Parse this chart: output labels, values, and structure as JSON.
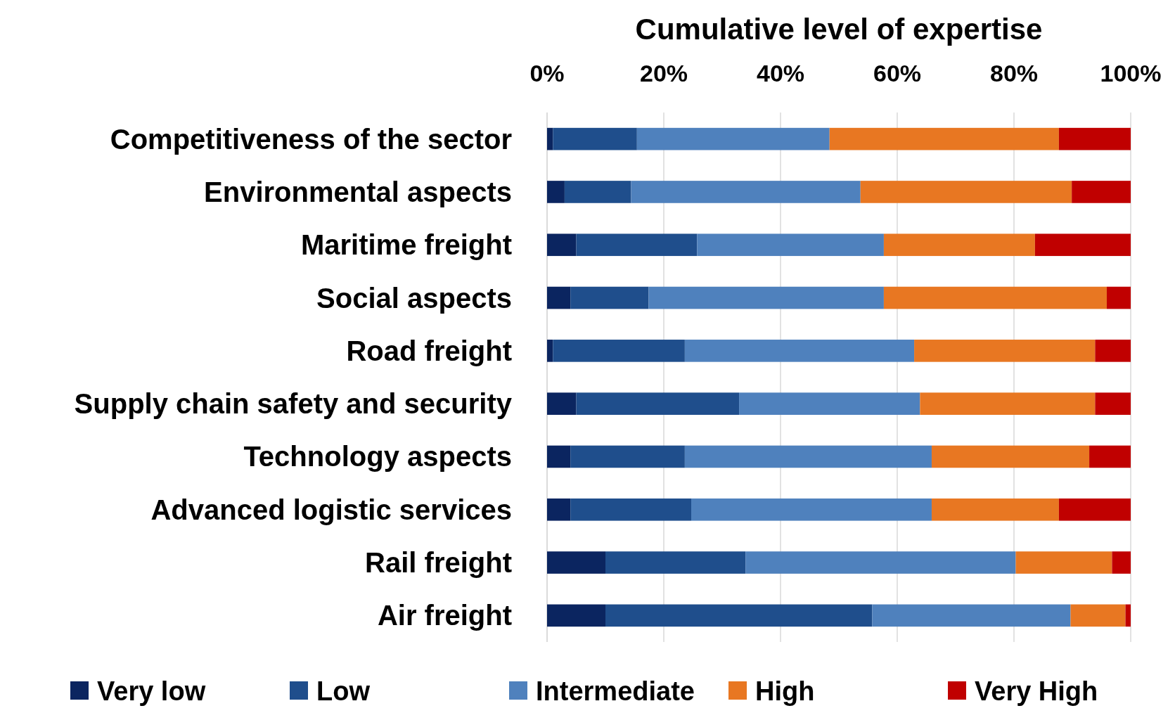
{
  "chart_data": {
    "type": "bar",
    "orientation": "horizontal",
    "stacked": true,
    "title": "Cumulative level of expertise",
    "categories": [
      "Competitiveness of the sector",
      "Environmental aspects",
      "Maritime freight",
      "Social aspects",
      "Road freight",
      "Supply chain safety and security",
      "Technology aspects",
      "Advanced logistic services",
      "Rail freight",
      "Air freight"
    ],
    "series": [
      {
        "name": "Very low",
        "color": "#0b2560",
        "values": [
          1,
          3,
          5,
          4,
          1,
          5,
          4,
          4,
          10,
          10
        ]
      },
      {
        "name": "Low",
        "color": "#1f4e8c",
        "values": [
          14.4,
          11.4,
          20.7,
          13.4,
          22.6,
          27.9,
          19.6,
          20.7,
          24,
          45.7
        ]
      },
      {
        "name": "Intermediate",
        "color": "#4f81bd",
        "values": [
          33,
          39.3,
          32,
          40.3,
          39.3,
          31,
          42.3,
          41.2,
          46.3,
          34
        ]
      },
      {
        "name": "High",
        "color": "#e87722",
        "values": [
          39.3,
          36.2,
          25.9,
          38.2,
          31,
          30,
          27,
          21.8,
          16.5,
          9.4
        ]
      },
      {
        "name": "Very High",
        "color": "#c00000",
        "values": [
          12.3,
          10.1,
          16.4,
          4.1,
          6.1,
          6.1,
          7.1,
          12.3,
          3.2,
          0.9
        ]
      }
    ],
    "xlim": [
      0,
      100
    ],
    "xticks": [
      {
        "value": 0,
        "label": "0%"
      },
      {
        "value": 20,
        "label": "20%"
      },
      {
        "value": 40,
        "label": "40%"
      },
      {
        "value": 60,
        "label": "60%"
      },
      {
        "value": 80,
        "label": "80%"
      },
      {
        "value": 100,
        "label": "100%"
      }
    ],
    "grid": "x",
    "legend": "bottom"
  }
}
